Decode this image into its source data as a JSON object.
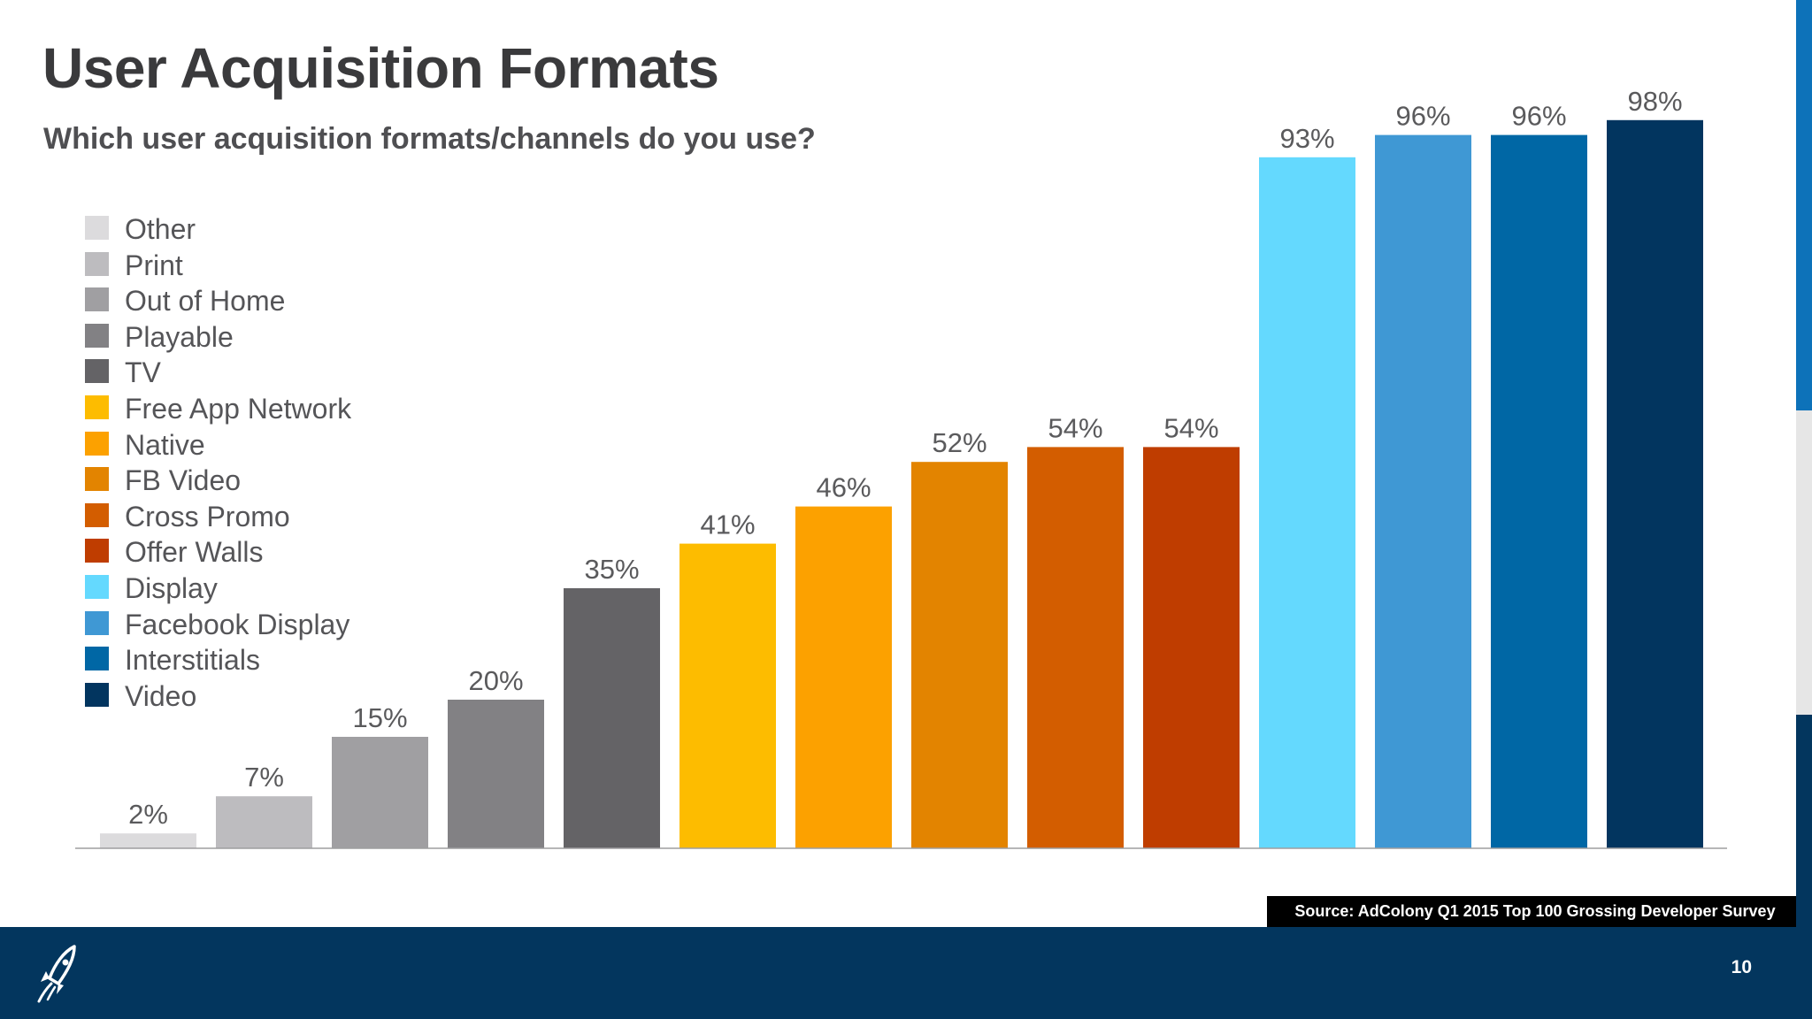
{
  "title": "User Acquisition Formats",
  "subtitle": "Which user acquisition formats/channels do you use?",
  "source": "Source: AdColony Q1 2015 Top 100 Grossing Developer Survey",
  "page_number": "10",
  "chart_data": {
    "type": "bar",
    "title": "",
    "xlabel": "",
    "ylabel": "",
    "ylim": [
      0,
      100
    ],
    "grid": false,
    "legend_position": "left",
    "categories": [
      "Other",
      "Print",
      "Out of Home",
      "Playable",
      "TV",
      "Free App Network",
      "Native",
      "FB Video",
      "Cross Promo",
      "Offer Walls",
      "Display",
      "Facebook Display",
      "Interstitials",
      "Video"
    ],
    "values": [
      2,
      7,
      15,
      20,
      35,
      41,
      46,
      52,
      54,
      54,
      93,
      96,
      96,
      98
    ],
    "value_labels": [
      "2%",
      "7%",
      "15%",
      "20%",
      "35%",
      "41%",
      "46%",
      "52%",
      "54%",
      "54%",
      "93%",
      "96%",
      "96%",
      "98%"
    ],
    "colors": [
      "#dcdbdd",
      "#bdbcbf",
      "#a09fa2",
      "#828184",
      "#646366",
      "#fdbc00",
      "#fca100",
      "#e38400",
      "#d35d00",
      "#bf3d00",
      "#64d9fe",
      "#3f98d4",
      "#0067a5",
      "#02355f"
    ]
  }
}
